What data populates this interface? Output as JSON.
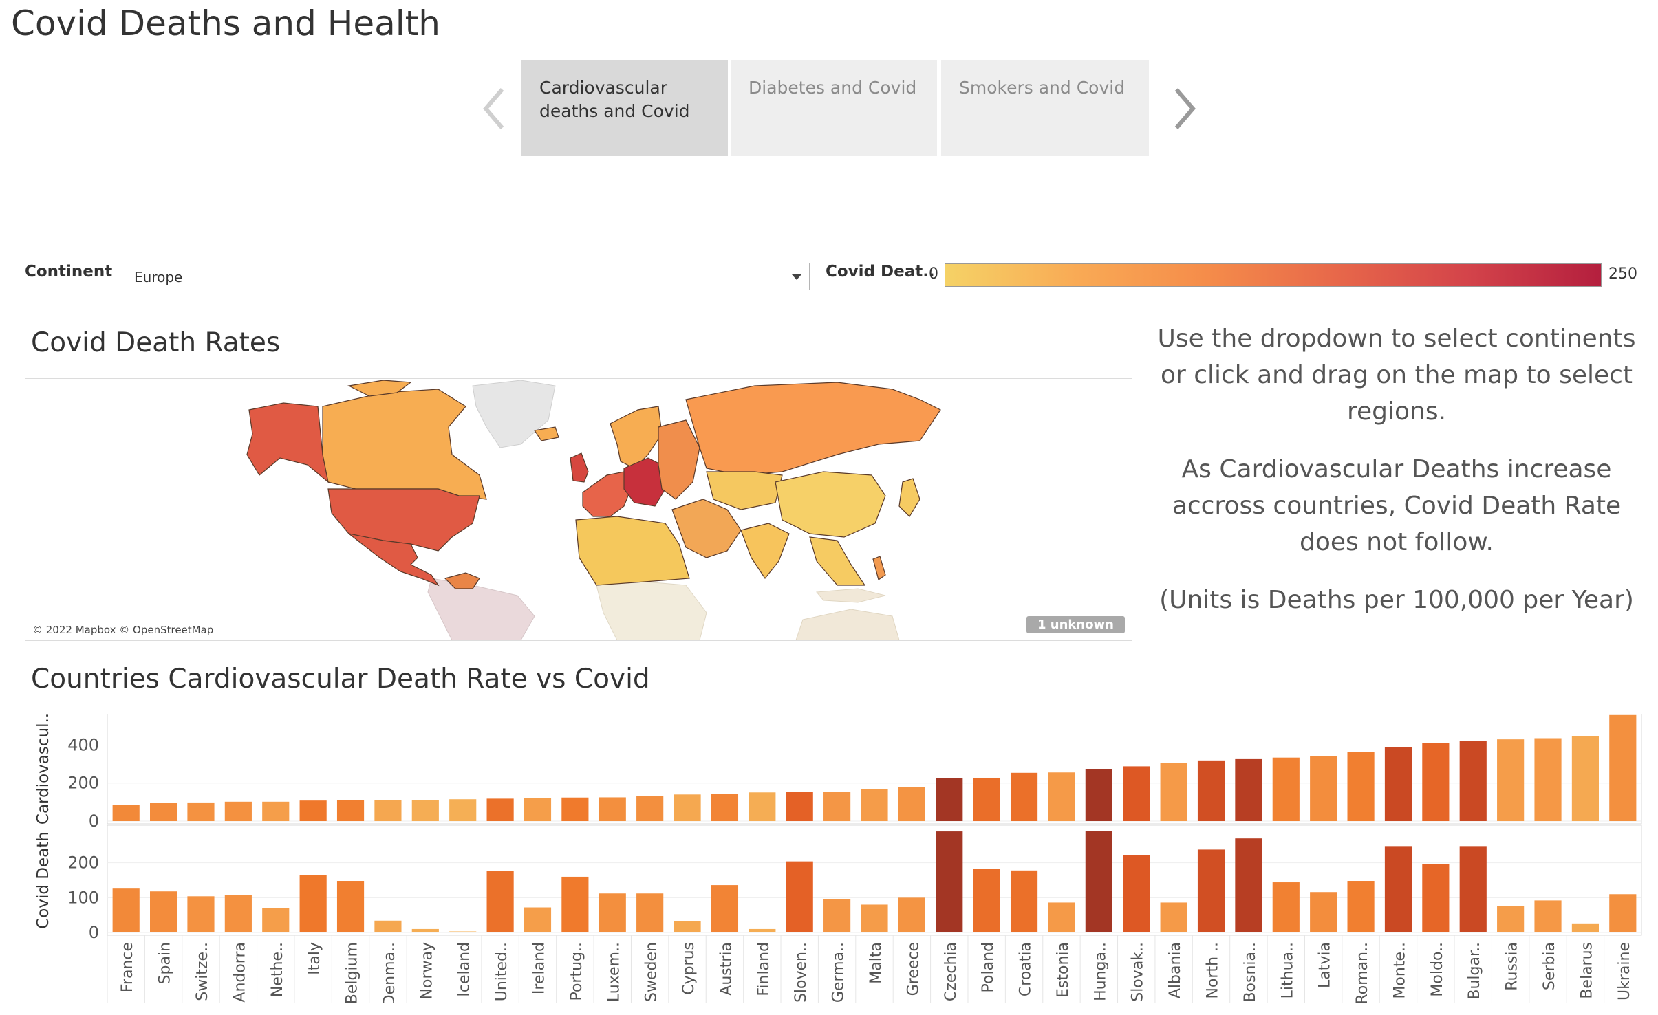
{
  "page": {
    "title": "Covid Deaths and Health"
  },
  "story": {
    "points": [
      {
        "label": "Cardiovascular deaths and Covid",
        "active": true
      },
      {
        "label": "Diabetes and Covid",
        "active": false
      },
      {
        "label": "Smokers and Covid",
        "active": false
      }
    ],
    "prev_icon": "chevron-left-icon",
    "next_icon": "chevron-right-icon"
  },
  "filter": {
    "label": "Continent",
    "value": "Europe"
  },
  "color_legend": {
    "title": "Covid Deat..",
    "min": "0",
    "max": "250",
    "colors": [
      "#f5d266",
      "#f9aa55",
      "#f58c4a",
      "#e7674a",
      "#d3434a",
      "#b41f3e"
    ]
  },
  "map": {
    "title": "Covid Death Rates",
    "attribution": "© 2022 Mapbox © OpenStreetMap",
    "unknown_badge": "1 unknown"
  },
  "side_text": {
    "p1": "Use the dropdown to select continents or click and drag on the map to select regions.",
    "p2": "As Cardiovascular Deaths increase accross countries, Covid Death Rate does not follow.",
    "p3": "(Units is Deaths per 100,000 per Year)"
  },
  "bar_chart": {
    "title": "Countries Cardiovascular Death Rate vs Covid"
  },
  "chart_data": {
    "type": "bar",
    "title": "Countries Cardiovascular Death Rate vs Covid",
    "categories": [
      "France",
      "Spain",
      "Switze..",
      "Andorra",
      "Nethe..",
      "Italy",
      "Belgium",
      "Denma..",
      "Norway",
      "Iceland",
      "United..",
      "Ireland",
      "Portug..",
      "Luxem..",
      "Sweden",
      "Cyprus",
      "Austria",
      "Finland",
      "Sloven..",
      "Germa..",
      "Malta",
      "Greece",
      "Czechia",
      "Poland",
      "Croatia",
      "Estonia",
      "Hunga..",
      "Slovak..",
      "Albania",
      "North ..",
      "Bosnia..",
      "Lithua..",
      "Latvia",
      "Roman..",
      "Monte..",
      "Moldo..",
      "Bulgar..",
      "Russia",
      "Serbia",
      "Belarus",
      "Ukraine"
    ],
    "series": [
      {
        "name": "Cardiovascul..",
        "ylabel": "Cardiovascul..",
        "yticks": [
          0,
          200,
          400
        ],
        "ylim": [
          0,
          550
        ],
        "values": [
          86,
          96,
          98,
          102,
          102,
          108,
          109,
          110,
          112,
          115,
          118,
          122,
          124,
          125,
          131,
          140,
          142,
          151,
          152,
          154,
          167,
          178,
          226,
          228,
          254,
          256,
          275,
          288,
          305,
          319,
          326,
          334,
          343,
          364,
          388,
          412,
          422,
          430,
          436,
          448,
          558
        ]
      },
      {
        "name": "Covid Death",
        "ylabel": "Covid Death",
        "yticks": [
          0,
          100,
          200
        ],
        "ylim": [
          0,
          300
        ],
        "values": [
          126,
          118,
          104,
          108,
          71,
          164,
          148,
          34,
          10,
          3,
          176,
          72,
          160,
          112,
          112,
          32,
          136,
          10,
          204,
          96,
          80,
          100,
          290,
          182,
          178,
          86,
          292,
          222,
          86,
          238,
          270,
          144,
          116,
          148,
          248,
          196,
          248,
          76,
          92,
          26,
          110
        ]
      }
    ],
    "xlabel": "",
    "grid": "horizontal",
    "orientation": "vertical-bars"
  }
}
